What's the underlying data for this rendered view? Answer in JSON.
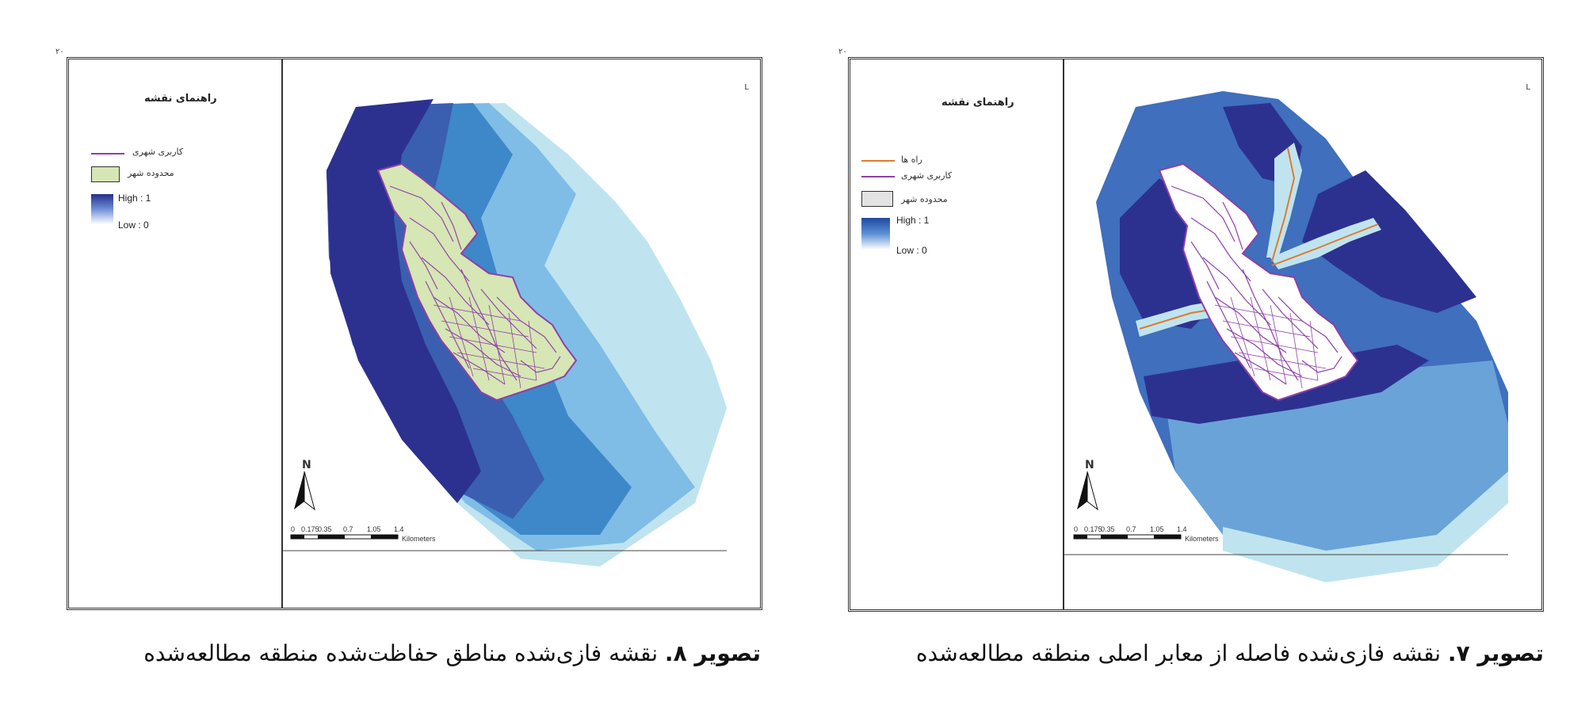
{
  "figures": [
    {
      "id": "fig8",
      "legend": {
        "title": "راهنمای نقشه",
        "items": [
          {
            "label": "کاربری شهری",
            "kind": "line",
            "color": "#8e3fa8"
          },
          {
            "label": "محدوده شهر",
            "kind": "box",
            "color": "#d6e6b4"
          }
        ],
        "ramp": {
          "high": "High : 1",
          "low": "Low : 0",
          "colors": [
            "#252e8a",
            "#ffffff"
          ]
        }
      },
      "caption": {
        "bold": "تصویر ۸.",
        "text": " نقشه فازی‌شده مناطق حفاظت‌شده منطقه مطالعه‌شده"
      },
      "north": "N",
      "scale_ticks": [
        "0",
        "0.175",
        "0.35",
        "0.7",
        "1.05",
        "1.4"
      ],
      "scale_unit": "Kilometers",
      "corner_tag": "۲۰",
      "top_right_mark": "L"
    },
    {
      "id": "fig7",
      "legend": {
        "title": "راهنمای نقشه",
        "items": [
          {
            "label": "راه ها",
            "kind": "line",
            "color": "#e07a2c"
          },
          {
            "label": "کاربری شهری",
            "kind": "line",
            "color": "#8e3fa8"
          },
          {
            "label": "محدوده شهر",
            "kind": "box",
            "color": "#e3e3e3"
          }
        ],
        "ramp": {
          "high": "High : 1",
          "low": "Low : 0",
          "colors": [
            "#1f4aa0",
            "#ffffff"
          ]
        }
      },
      "caption": {
        "bold": "تصویر ۷.",
        "text": " نقشه فازی‌شده فاصله از معابر اصلی منطقه مطالعه‌شده"
      },
      "north": "N",
      "scale_ticks": [
        "0",
        "0.175",
        "0.35",
        "0.7",
        "1.05",
        "1.4"
      ],
      "scale_unit": "Kilometers",
      "corner_tag": "۲۰",
      "top_right_mark": "L"
    }
  ],
  "colors": {
    "zone_dark": "#2c3190",
    "zone_mid": "#3a5fb0",
    "zone_blue": "#3e88c9",
    "zone_light": "#7fbde6",
    "zone_pale": "#bfe4ef",
    "urban_fill_fig8": "#d6e6b4",
    "urban_lines": "#8e3fa8",
    "roads": "#e07a2c"
  }
}
